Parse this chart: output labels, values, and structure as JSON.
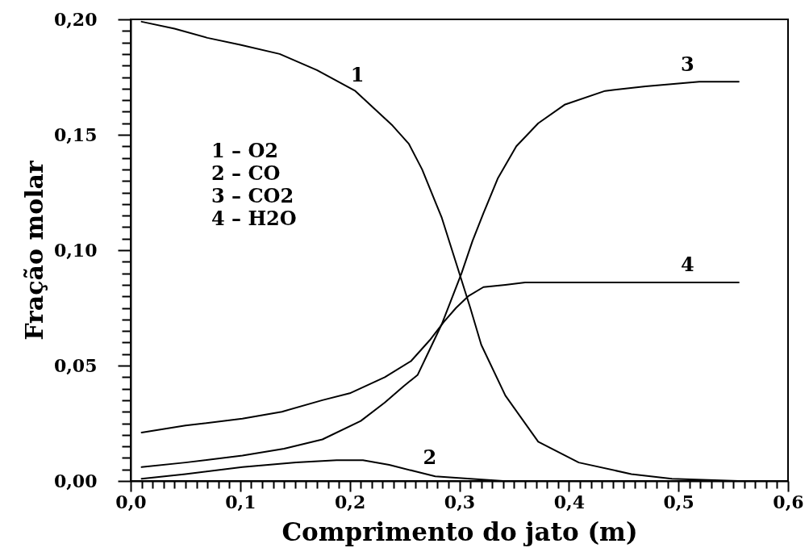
{
  "chart_data": {
    "type": "line",
    "xlabel": "Comprimento do jato (m)",
    "ylabel": "Fração molar",
    "xlim": [
      0,
      0.6
    ],
    "ylim": [
      0,
      0.2
    ],
    "xticks": [
      {
        "value": 0,
        "label": "0,0"
      },
      {
        "value": 0.01,
        "label": null
      },
      {
        "value": 0.02,
        "label": null
      },
      {
        "value": 0.03,
        "label": null
      },
      {
        "value": 0.04,
        "label": null
      },
      {
        "value": 0.05,
        "label": null
      },
      {
        "value": 0.06,
        "label": null
      },
      {
        "value": 0.07,
        "label": null
      },
      {
        "value": 0.08,
        "label": null
      },
      {
        "value": 0.09,
        "label": null
      },
      {
        "value": 0.1,
        "label": "0,1"
      },
      {
        "value": 0.11,
        "label": null
      },
      {
        "value": 0.12,
        "label": null
      },
      {
        "value": 0.13,
        "label": null
      },
      {
        "value": 0.14,
        "label": null
      },
      {
        "value": 0.15,
        "label": null
      },
      {
        "value": 0.16,
        "label": null
      },
      {
        "value": 0.17,
        "label": null
      },
      {
        "value": 0.18,
        "label": null
      },
      {
        "value": 0.19,
        "label": null
      },
      {
        "value": 0.2,
        "label": "0,2"
      },
      {
        "value": 0.21,
        "label": null
      },
      {
        "value": 0.22,
        "label": null
      },
      {
        "value": 0.23,
        "label": null
      },
      {
        "value": 0.24,
        "label": null
      },
      {
        "value": 0.25,
        "label": null
      },
      {
        "value": 0.26,
        "label": null
      },
      {
        "value": 0.27,
        "label": null
      },
      {
        "value": 0.28,
        "label": null
      },
      {
        "value": 0.29,
        "label": null
      },
      {
        "value": 0.3,
        "label": "0,3"
      },
      {
        "value": 0.31,
        "label": null
      },
      {
        "value": 0.32,
        "label": null
      },
      {
        "value": 0.33,
        "label": null
      },
      {
        "value": 0.34,
        "label": null
      },
      {
        "value": 0.35,
        "label": null
      },
      {
        "value": 0.36,
        "label": null
      },
      {
        "value": 0.37,
        "label": null
      },
      {
        "value": 0.38,
        "label": null
      },
      {
        "value": 0.39,
        "label": null
      },
      {
        "value": 0.4,
        "label": "0,4"
      },
      {
        "value": 0.41,
        "label": null
      },
      {
        "value": 0.42,
        "label": null
      },
      {
        "value": 0.43,
        "label": null
      },
      {
        "value": 0.44,
        "label": null
      },
      {
        "value": 0.45,
        "label": null
      },
      {
        "value": 0.46,
        "label": null
      },
      {
        "value": 0.47,
        "label": null
      },
      {
        "value": 0.48,
        "label": null
      },
      {
        "value": 0.49,
        "label": null
      },
      {
        "value": 0.5,
        "label": "0,5"
      },
      {
        "value": 0.51,
        "label": null
      },
      {
        "value": 0.52,
        "label": null
      },
      {
        "value": 0.53,
        "label": null
      },
      {
        "value": 0.54,
        "label": null
      },
      {
        "value": 0.55,
        "label": null
      },
      {
        "value": 0.56,
        "label": null
      },
      {
        "value": 0.57,
        "label": null
      },
      {
        "value": 0.58,
        "label": null
      },
      {
        "value": 0.59,
        "label": null
      },
      {
        "value": 0.6,
        "label": "0,6"
      }
    ],
    "yticks": [
      {
        "value": 0,
        "label": "0,00"
      },
      {
        "value": 0.005,
        "label": null
      },
      {
        "value": 0.01,
        "label": null
      },
      {
        "value": 0.015,
        "label": null
      },
      {
        "value": 0.02,
        "label": null
      },
      {
        "value": 0.025,
        "label": null
      },
      {
        "value": 0.03,
        "label": null
      },
      {
        "value": 0.035,
        "label": null
      },
      {
        "value": 0.04,
        "label": null
      },
      {
        "value": 0.045,
        "label": null
      },
      {
        "value": 0.05,
        "label": "0,05"
      },
      {
        "value": 0.055,
        "label": null
      },
      {
        "value": 0.06,
        "label": null
      },
      {
        "value": 0.065,
        "label": null
      },
      {
        "value": 0.07,
        "label": null
      },
      {
        "value": 0.075,
        "label": null
      },
      {
        "value": 0.08,
        "label": null
      },
      {
        "value": 0.085,
        "label": null
      },
      {
        "value": 0.09,
        "label": null
      },
      {
        "value": 0.095,
        "label": null
      },
      {
        "value": 0.1,
        "label": "0,10"
      },
      {
        "value": 0.105,
        "label": null
      },
      {
        "value": 0.11,
        "label": null
      },
      {
        "value": 0.115,
        "label": null
      },
      {
        "value": 0.12,
        "label": null
      },
      {
        "value": 0.125,
        "label": null
      },
      {
        "value": 0.13,
        "label": null
      },
      {
        "value": 0.135,
        "label": null
      },
      {
        "value": 0.14,
        "label": null
      },
      {
        "value": 0.145,
        "label": null
      },
      {
        "value": 0.15,
        "label": "0,15"
      },
      {
        "value": 0.155,
        "label": null
      },
      {
        "value": 0.16,
        "label": null
      },
      {
        "value": 0.165,
        "label": null
      },
      {
        "value": 0.17,
        "label": null
      },
      {
        "value": 0.175,
        "label": null
      },
      {
        "value": 0.18,
        "label": null
      },
      {
        "value": 0.185,
        "label": null
      },
      {
        "value": 0.19,
        "label": null
      },
      {
        "value": 0.195,
        "label": null
      },
      {
        "value": 0.2,
        "label": "0,20"
      }
    ],
    "annotations": [
      "1 – O2",
      "2 – CO",
      "3 – CO2",
      "4 – H2O"
    ],
    "series": [
      {
        "name": "1",
        "color": "#000000",
        "x": [
          0.01,
          0.04,
          0.07,
          0.1,
          0.136,
          0.17,
          0.205,
          0.239,
          0.254,
          0.266,
          0.284,
          0.298,
          0.31,
          0.32,
          0.342,
          0.372,
          0.409,
          0.457,
          0.494,
          0.555
        ],
        "values": [
          0.199,
          0.196,
          0.192,
          0.189,
          0.185,
          0.178,
          0.169,
          0.154,
          0.146,
          0.135,
          0.114,
          0.093,
          0.075,
          0.059,
          0.037,
          0.017,
          0.008,
          0.003,
          0.001,
          0
        ]
      },
      {
        "name": "2",
        "color": "#000000",
        "x": [
          0.01,
          0.05,
          0.102,
          0.151,
          0.188,
          0.212,
          0.236,
          0.261,
          0.278,
          0.31,
          0.34,
          0.555
        ],
        "values": [
          0.001,
          0.003,
          0.006,
          0.008,
          0.009,
          0.009,
          0.007,
          0.004,
          0.002,
          0.001,
          0,
          0
        ]
      },
      {
        "name": "3",
        "color": "#000000",
        "x": [
          0.01,
          0.05,
          0.102,
          0.14,
          0.175,
          0.21,
          0.232,
          0.249,
          0.262,
          0.273,
          0.284,
          0.293,
          0.302,
          0.312,
          0.322,
          0.335,
          0.352,
          0.372,
          0.396,
          0.433,
          0.47,
          0.519,
          0.555
        ],
        "values": [
          0.006,
          0.008,
          0.011,
          0.014,
          0.018,
          0.026,
          0.034,
          0.041,
          0.046,
          0.057,
          0.068,
          0.079,
          0.09,
          0.104,
          0.116,
          0.131,
          0.145,
          0.155,
          0.163,
          0.169,
          0.171,
          0.173,
          0.173
        ]
      },
      {
        "name": "4",
        "color": "#000000",
        "x": [
          0.01,
          0.05,
          0.102,
          0.138,
          0.175,
          0.2,
          0.232,
          0.256,
          0.273,
          0.286,
          0.297,
          0.308,
          0.322,
          0.342,
          0.36,
          0.555
        ],
        "values": [
          0.021,
          0.024,
          0.027,
          0.03,
          0.035,
          0.038,
          0.045,
          0.052,
          0.061,
          0.069,
          0.075,
          0.08,
          0.084,
          0.085,
          0.086,
          0.086
        ]
      }
    ]
  }
}
